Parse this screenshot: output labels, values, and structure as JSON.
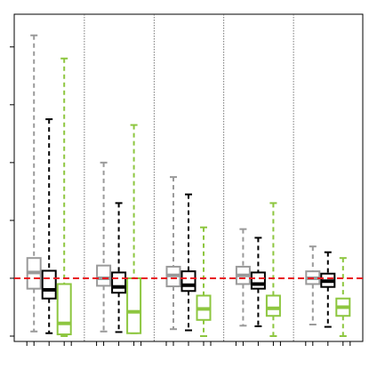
{
  "chart_data": {
    "type": "box",
    "title": "",
    "xlabel": "",
    "ylabel": "",
    "groups": 5,
    "reference_line": {
      "y": 1.0,
      "color": "#e8161f",
      "style": "dashed"
    },
    "ylim": [
      0,
      5.35
    ],
    "y_ticks": [
      0,
      1,
      2,
      3,
      4,
      5
    ],
    "grid": false,
    "legend": "none",
    "series": [
      {
        "color": "#9a9a9a",
        "boxes": [
          {
            "min": 0.08,
            "q1": 0.82,
            "median": 1.1,
            "q3": 1.35,
            "max": 5.2
          },
          {
            "min": 0.08,
            "q1": 0.87,
            "median": 1.0,
            "q3": 1.22,
            "max": 3.0
          },
          {
            "min": 0.12,
            "q1": 0.86,
            "median": 1.05,
            "q3": 1.2,
            "max": 2.75
          },
          {
            "min": 0.18,
            "q1": 0.9,
            "median": 1.05,
            "q3": 1.2,
            "max": 1.85
          },
          {
            "min": 0.2,
            "q1": 0.9,
            "median": 1.0,
            "q3": 1.12,
            "max": 1.55
          }
        ]
      },
      {
        "color": "#000000",
        "boxes": [
          {
            "min": 0.05,
            "q1": 0.65,
            "median": 0.8,
            "q3": 1.13,
            "max": 3.75
          },
          {
            "min": 0.07,
            "q1": 0.75,
            "median": 0.85,
            "q3": 1.1,
            "max": 2.3
          },
          {
            "min": 0.1,
            "q1": 0.78,
            "median": 0.88,
            "q3": 1.12,
            "max": 2.45
          },
          {
            "min": 0.17,
            "q1": 0.82,
            "median": 0.9,
            "q3": 1.1,
            "max": 1.7
          },
          {
            "min": 0.16,
            "q1": 0.85,
            "median": 0.95,
            "q3": 1.08,
            "max": 1.45
          }
        ]
      },
      {
        "color": "#8dc63f",
        "boxes": [
          {
            "min": 0.0,
            "q1": 0.03,
            "median": 0.22,
            "q3": 0.9,
            "max": 4.8
          },
          {
            "min": 0.05,
            "q1": 0.05,
            "median": 0.42,
            "q3": 1.0,
            "max": 3.65
          },
          {
            "min": 0.0,
            "q1": 0.28,
            "median": 0.47,
            "q3": 0.7,
            "max": 1.88
          },
          {
            "min": 0.0,
            "q1": 0.35,
            "median": 0.48,
            "q3": 0.7,
            "max": 2.3
          },
          {
            "min": 0.0,
            "q1": 0.35,
            "median": 0.5,
            "q3": 0.65,
            "max": 1.35
          }
        ]
      }
    ]
  }
}
